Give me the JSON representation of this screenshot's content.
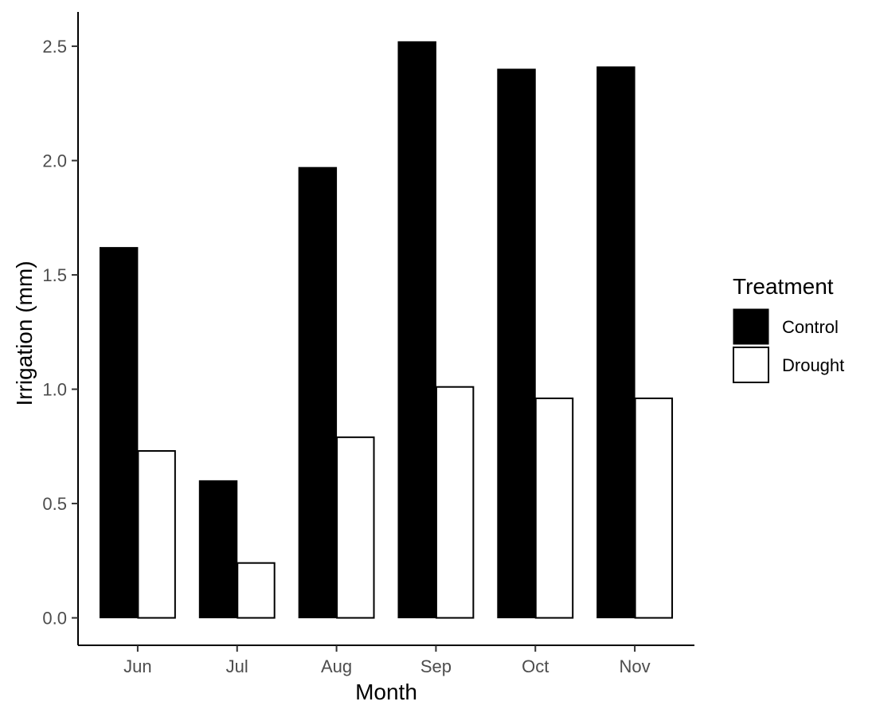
{
  "chart_data": {
    "type": "bar",
    "title": "",
    "xlabel": "Month",
    "ylabel": "Irrigation (mm)",
    "categories": [
      "Jun",
      "Jul",
      "Aug",
      "Sep",
      "Oct",
      "Nov"
    ],
    "series": [
      {
        "name": "Control",
        "values": [
          1.62,
          0.6,
          1.97,
          2.52,
          2.4,
          2.41
        ],
        "fill": "#000000"
      },
      {
        "name": "Drought",
        "values": [
          0.73,
          0.24,
          0.79,
          1.01,
          0.96,
          0.96
        ],
        "fill": "#ffffff"
      }
    ],
    "ylim": [
      -0.12,
      2.65
    ],
    "yticks": [
      0.0,
      0.5,
      1.0,
      1.5,
      2.0,
      2.5
    ],
    "ytick_labels": [
      "0.0",
      "0.5",
      "1.0",
      "1.5",
      "2.0",
      "2.5"
    ],
    "grid": false,
    "legend": {
      "title": "Treatment",
      "placement": "right"
    }
  }
}
